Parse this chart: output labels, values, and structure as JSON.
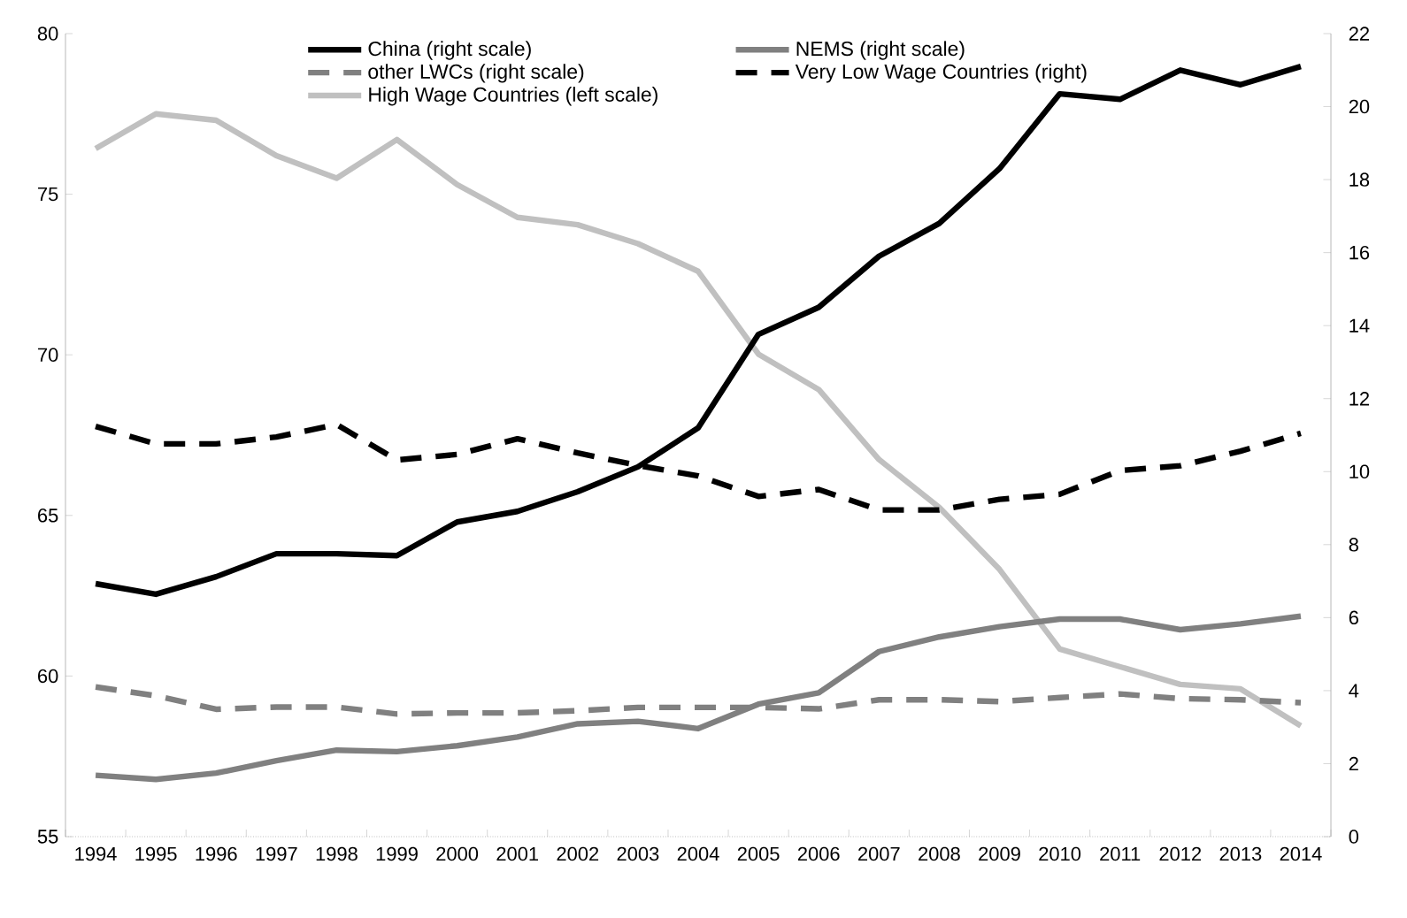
{
  "chart_data": {
    "type": "line",
    "categories": [
      "1994",
      "1995",
      "1996",
      "1997",
      "1998",
      "1999",
      "2000",
      "2001",
      "2002",
      "2003",
      "2004",
      "2005",
      "2006",
      "2007",
      "2008",
      "2009",
      "2010",
      "2011",
      "2012",
      "2013",
      "2014"
    ],
    "series": [
      {
        "name": "China (right scale)",
        "color": "#000000",
        "axis": "y2",
        "line_style": "solid",
        "values": [
          6.93,
          6.64,
          7.12,
          7.75,
          7.75,
          7.7,
          8.62,
          8.91,
          9.45,
          10.13,
          11.2,
          13.76,
          14.5,
          15.9,
          16.8,
          18.3,
          20.35,
          20.2,
          21.0,
          20.6,
          21.1
        ]
      },
      {
        "name": "NEMS  (right scale)",
        "color": "#808080",
        "axis": "y2",
        "line_style": "solid",
        "values": [
          1.68,
          1.57,
          1.74,
          2.08,
          2.37,
          2.33,
          2.49,
          2.73,
          3.09,
          3.16,
          2.96,
          3.63,
          3.94,
          5.07,
          5.47,
          5.75,
          5.96,
          5.96,
          5.67,
          5.83,
          6.04
        ]
      },
      {
        "name": "other LWCs (right scale)",
        "color": "#808080",
        "axis": "y2",
        "line_style": "dashed",
        "values": [
          4.1,
          3.86,
          3.49,
          3.55,
          3.55,
          3.36,
          3.39,
          3.39,
          3.45,
          3.54,
          3.54,
          3.54,
          3.5,
          3.75,
          3.75,
          3.7,
          3.81,
          3.91,
          3.78,
          3.75,
          3.67
        ]
      },
      {
        "name": "Very Low Wage Countries (right)",
        "color": "#000000",
        "axis": "y2",
        "line_style": "dashed",
        "values": [
          11.24,
          10.76,
          10.76,
          10.95,
          11.29,
          10.32,
          10.47,
          10.9,
          10.51,
          10.17,
          9.88,
          9.32,
          9.51,
          8.95,
          8.95,
          9.24,
          9.38,
          10.03,
          10.16,
          10.56,
          11.05
        ]
      },
      {
        "name": "High Wage Countries (left scale)",
        "color": "#c0c0c0",
        "axis": "y",
        "line_style": "solid",
        "values": [
          76.42,
          77.5,
          77.3,
          76.2,
          75.5,
          76.7,
          75.3,
          74.28,
          74.05,
          73.46,
          72.6,
          70.02,
          68.92,
          66.74,
          65.25,
          63.32,
          60.84,
          60.29,
          59.74,
          59.6,
          58.45
        ]
      }
    ],
    "ylim": [
      55,
      80
    ],
    "yticks": [
      55,
      60,
      65,
      70,
      75,
      80
    ],
    "y2lim": [
      0,
      22
    ],
    "y2ticks": [
      0,
      2,
      4,
      6,
      8,
      10,
      12,
      14,
      16,
      18,
      20,
      22
    ],
    "legend": "top",
    "marker": "none",
    "grid": false
  }
}
